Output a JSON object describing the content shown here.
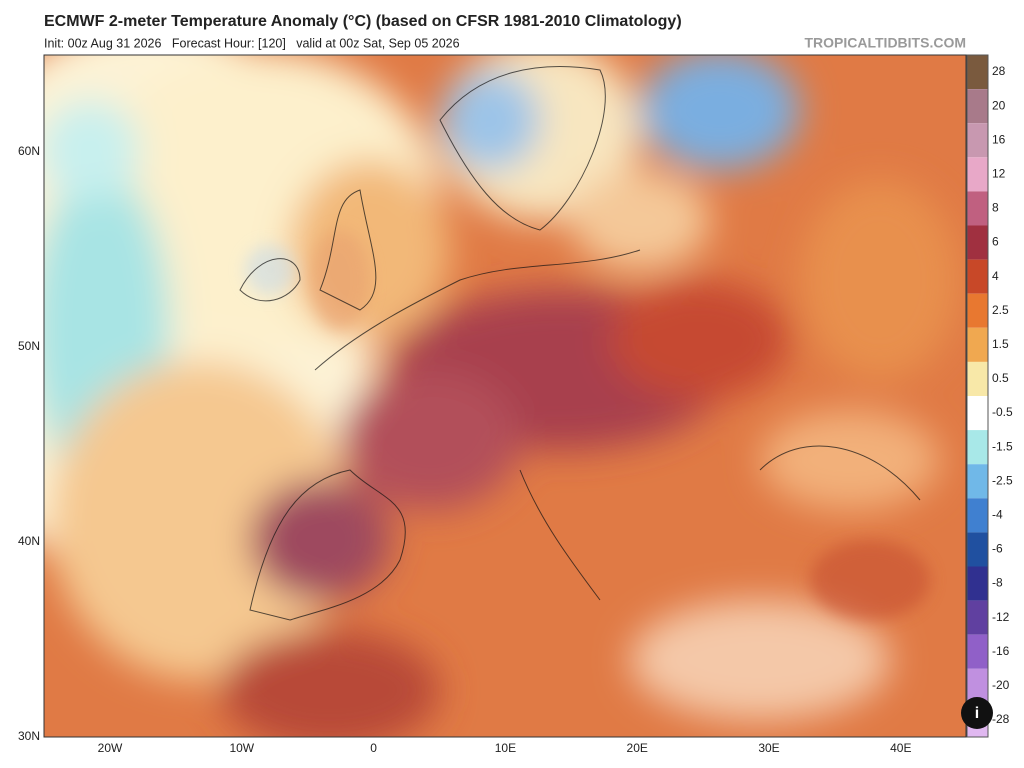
{
  "header": {
    "title": "ECMWF 2-meter Temperature Anomaly (°C) (based on CFSR 1981-2010 Climatology)",
    "subtitle": "Init: 00z Aug 31 2026   Forecast Hour: [120]   valid at 00z Sat, Sep 05 2026",
    "brand": "TROPICALTIDBITS.COM"
  },
  "map": {
    "lat_labels": [
      "60N",
      "50N",
      "40N",
      "30N"
    ],
    "lon_labels": [
      "20W",
      "10W",
      "0",
      "10E",
      "20E",
      "30E",
      "40E"
    ]
  },
  "legend": {
    "labels": [
      "28",
      "20",
      "16",
      "12",
      "8",
      "6",
      "4",
      "2.5",
      "1.5",
      "0.5",
      "-0.5",
      "-1.5",
      "-2.5",
      "-4",
      "-6",
      "-8",
      "-12",
      "-16",
      "-20",
      "-28"
    ]
  },
  "info_button": "i"
}
